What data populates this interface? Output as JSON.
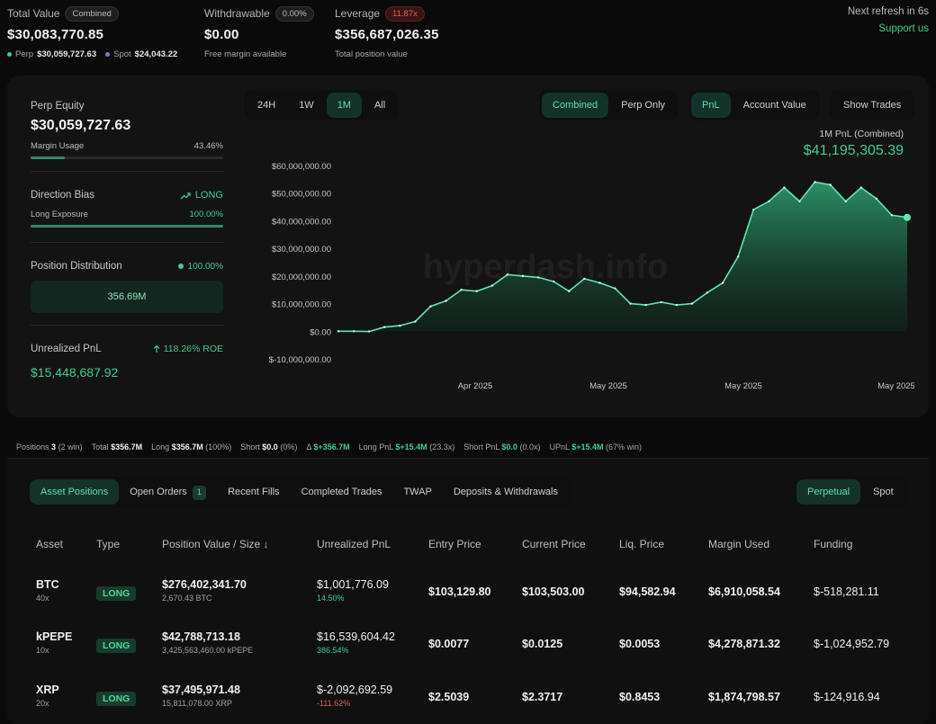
{
  "summary": {
    "total_value": {
      "label": "Total Value",
      "pill": "Combined",
      "value": "$30,083,770.85",
      "perp_label": "Perp",
      "perp_value": "$30,059,727.63",
      "spot_label": "Spot",
      "spot_value": "$24,043.22"
    },
    "withdrawable": {
      "label": "Withdrawable",
      "pill": "0.00%",
      "value": "$0.00",
      "sub": "Free margin available"
    },
    "leverage": {
      "label": "Leverage",
      "pill": "11.87x",
      "value": "$356,687,026.35",
      "sub": "Total position value"
    },
    "refresh": "Next refresh in 6s",
    "support": "Support us"
  },
  "left_panel": {
    "perp_equity_label": "Perp Equity",
    "perp_equity_value": "$30,059,727.63",
    "margin_usage_label": "Margin Usage",
    "margin_usage_value": "43.46%",
    "margin_usage_frac": 0.4346,
    "direction_bias_label": "Direction Bias",
    "direction_bias_value": "LONG",
    "long_exposure_label": "Long Exposure",
    "long_exposure_value": "100.00%",
    "long_exposure_frac": 1.0,
    "position_distribution_label": "Position Distribution",
    "position_distribution_value": "100.00%",
    "distribution_amount": "356.69M",
    "unrealized_pnl_label": "Unrealized PnL",
    "roe": "118.26% ROE",
    "unrealized_pnl_value": "$15,448,687.92"
  },
  "chart_controls": {
    "ranges": [
      "24H",
      "1W",
      "1M",
      "All"
    ],
    "active_range": "1M",
    "modes": [
      "Combined",
      "Perp Only"
    ],
    "active_mode": "Combined",
    "metrics": [
      "PnL",
      "Account Value"
    ],
    "active_metric": "PnL",
    "show_trades": "Show Trades",
    "pnl_label": "1M PnL (Combined)",
    "pnl_value": "$41,195,305.39",
    "watermark": "hyperdash.info"
  },
  "chart_data": {
    "type": "area",
    "title": "1M PnL (Combined)",
    "y_ticks": [
      "$60,000,000.00",
      "$50,000,000.00",
      "$40,000,000.00",
      "$30,000,000.00",
      "$20,000,000.00",
      "$10,000,000.00",
      "$0.00",
      "$-10,000,000.00"
    ],
    "ylim": [
      -10000000,
      60000000
    ],
    "x_ticks": [
      "Apr 2025",
      "May 2025",
      "May 2025",
      "May 2025"
    ],
    "series": [
      {
        "values": [
          0,
          0,
          -100000,
          1500000,
          2000000,
          3500000,
          9000000,
          11000000,
          15000000,
          14500000,
          16500000,
          20500000,
          20000000,
          19500000,
          18000000,
          14500000,
          19000000,
          17500000,
          15500000,
          10000000,
          9500000,
          10500000,
          9500000,
          10000000,
          14000000,
          17500000,
          27000000,
          44000000,
          47000000,
          52000000,
          47000000,
          54000000,
          53000000,
          47000000,
          52000000,
          48000000,
          42000000,
          41200000
        ]
      }
    ],
    "grid": false
  },
  "strip": {
    "positions_label": "Positions",
    "positions_value": "3",
    "positions_win": "(2 win)",
    "total_label": "Total",
    "total_value": "$356.7M",
    "long_label": "Long",
    "long_value": "$356.7M",
    "long_pct": "(100%)",
    "short_label": "Short",
    "short_value": "$0.0",
    "short_pct": "(0%)",
    "delta_label": "Δ",
    "delta_value": "$+356.7M",
    "long_pnl_label": "Long PnL",
    "long_pnl_value": "$+15.4M",
    "long_pnl_x": "(23.3x)",
    "short_pnl_label": "Short PnL",
    "short_pnl_value": "$0.0",
    "short_pnl_x": "(0.0x)",
    "upnl_label": "UPnL",
    "upnl_value": "$+15.4M",
    "upnl_win": "(67% win)"
  },
  "table": {
    "tabs": [
      "Asset Positions",
      "Open Orders",
      "Recent Fills",
      "Completed Trades",
      "TWAP",
      "Deposits & Withdrawals"
    ],
    "open_orders_count": "1",
    "active_tab": "Asset Positions",
    "market_tabs": [
      "Perpetual",
      "Spot"
    ],
    "active_market": "Perpetual",
    "headers": [
      "Asset",
      "Type",
      "Position Value / Size",
      "Unrealized PnL",
      "Entry Price",
      "Current Price",
      "Liq. Price",
      "Margin Used",
      "Funding"
    ],
    "rows": [
      {
        "asset": "BTC",
        "lev": "40x",
        "type": "LONG",
        "value": "$276,402,341.70",
        "size": "2,670.43 BTC",
        "pnl": "$1,001,776.09",
        "pnl_pct": "14.50%",
        "pnl_pos": true,
        "entry": "$103,129.80",
        "current": "$103,503.00",
        "liq": "$94,582.94",
        "margin": "$6,910,058.54",
        "funding": "$-518,281.11"
      },
      {
        "asset": "kPEPE",
        "lev": "10x",
        "type": "LONG",
        "value": "$42,788,713.18",
        "size": "3,425,563,460.00 kPEPE",
        "pnl": "$16,539,604.42",
        "pnl_pct": "386.54%",
        "pnl_pos": true,
        "entry": "$0.0077",
        "current": "$0.0125",
        "liq": "$0.0053",
        "margin": "$4,278,871.32",
        "funding": "$-1,024,952.79"
      },
      {
        "asset": "XRP",
        "lev": "20x",
        "type": "LONG",
        "value": "$37,495,971.48",
        "size": "15,811,078.00 XRP",
        "pnl": "$-2,092,692.59",
        "pnl_pct": "-111.62%",
        "pnl_pos": false,
        "entry": "$2.5039",
        "current": "$2.3717",
        "liq": "$0.8453",
        "margin": "$1,874,798.57",
        "funding": "$-124,916.94"
      }
    ]
  },
  "colors": {
    "accent": "#3ecf8e",
    "negative": "#e35d5d",
    "background": "#0a0a0a"
  }
}
